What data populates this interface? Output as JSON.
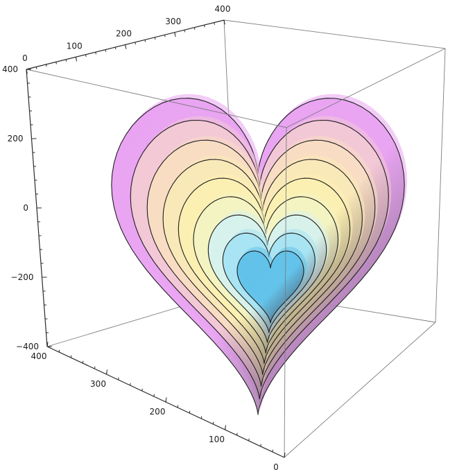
{
  "chart_data": {
    "type": "contour3d",
    "title": "",
    "axes": {
      "top": {
        "ticks": [
          0,
          100,
          200,
          300,
          400
        ],
        "range": [
          0,
          400
        ]
      },
      "vertical": {
        "ticks": [
          400,
          200,
          0,
          -200,
          -400
        ],
        "labels": [
          "400",
          "200",
          "0",
          "−200",
          "−400"
        ],
        "range": [
          -400,
          400
        ]
      },
      "bottom": {
        "ticks": [
          400,
          300,
          200,
          100,
          0
        ],
        "range": [
          0,
          400
        ]
      }
    },
    "surfaces": [
      {
        "level": 1,
        "color": "#e9a3f2"
      },
      {
        "level": 2,
        "color": "#f3c9d6"
      },
      {
        "level": 3,
        "color": "#f8ddc3"
      },
      {
        "level": 4,
        "color": "#fae9b8"
      },
      {
        "level": 5,
        "color": "#fbf0b2"
      },
      {
        "level": 6,
        "color": "#f4f4c2"
      },
      {
        "level": 7,
        "color": "#d7f2ec"
      },
      {
        "level": 8,
        "color": "#a8e4f3"
      },
      {
        "level": 9,
        "color": "#62c2ea"
      }
    ],
    "box": true,
    "grid": false
  }
}
